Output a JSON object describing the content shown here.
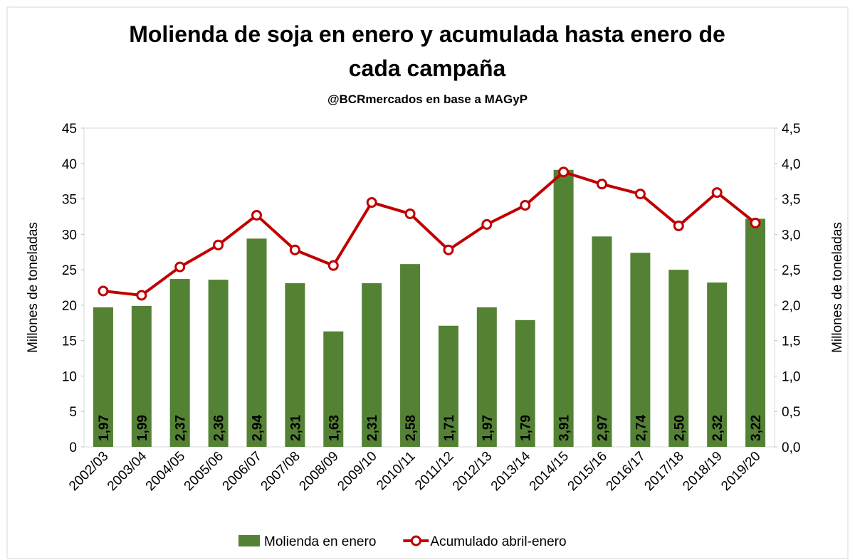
{
  "chart_data": {
    "type": "bar_line",
    "title": "Molienda de soja en enero y acumulada hasta enero de cada campaña",
    "subtitle": "@BCRmercados en base a MAGyP",
    "ylabel": "Millones de toneladas",
    "y2label": "Millones de toneladas",
    "categories": [
      "2002/03",
      "2003/04",
      "2004/05",
      "2005/06",
      "2006/07",
      "2007/08",
      "2008/09",
      "2009/10",
      "2010/11",
      "2011/12",
      "2012/13",
      "2013/14",
      "2014/15",
      "2015/16",
      "2016/17",
      "2017/18",
      "2018/19",
      "2019/20"
    ],
    "series": [
      {
        "name": "Molienda en enero",
        "type": "bar",
        "axis": "y2",
        "color": "#548235",
        "values": [
          1.97,
          1.99,
          2.37,
          2.36,
          2.94,
          2.31,
          1.63,
          2.31,
          2.58,
          1.71,
          1.97,
          1.79,
          3.91,
          2.97,
          2.74,
          2.5,
          2.32,
          3.22
        ],
        "value_labels": [
          "1,97",
          "1,99",
          "2,37",
          "2,36",
          "2,94",
          "2,31",
          "1,63",
          "2,31",
          "2,58",
          "1,71",
          "1,97",
          "1,79",
          "3,91",
          "2,97",
          "2,74",
          "2,50",
          "2,32",
          "3,22"
        ]
      },
      {
        "name": "Acumulado abril-enero",
        "type": "line",
        "axis": "y",
        "color": "#c00000",
        "values": [
          22.0,
          21.4,
          25.4,
          28.5,
          32.7,
          27.8,
          25.6,
          34.5,
          32.9,
          27.8,
          31.4,
          34.1,
          38.8,
          37.1,
          35.7,
          31.2,
          35.9,
          31.6
        ]
      }
    ],
    "ylim": [
      0,
      45
    ],
    "yticks": [
      0,
      5,
      10,
      15,
      20,
      25,
      30,
      35,
      40,
      45
    ],
    "y2lim": [
      0,
      4.5
    ],
    "y2ticks": [
      {
        "value": 0,
        "label": "0,0"
      },
      {
        "value": 0.5,
        "label": "0,5"
      },
      {
        "value": 1,
        "label": "1,0"
      },
      {
        "value": 1.5,
        "label": "1,5"
      },
      {
        "value": 2,
        "label": "2,0"
      },
      {
        "value": 2.5,
        "label": "2,5"
      },
      {
        "value": 3,
        "label": "3,0"
      },
      {
        "value": 3.5,
        "label": "3,5"
      },
      {
        "value": 4,
        "label": "4,0"
      },
      {
        "value": 4.5,
        "label": "4,5"
      }
    ],
    "legend": "bottom"
  }
}
